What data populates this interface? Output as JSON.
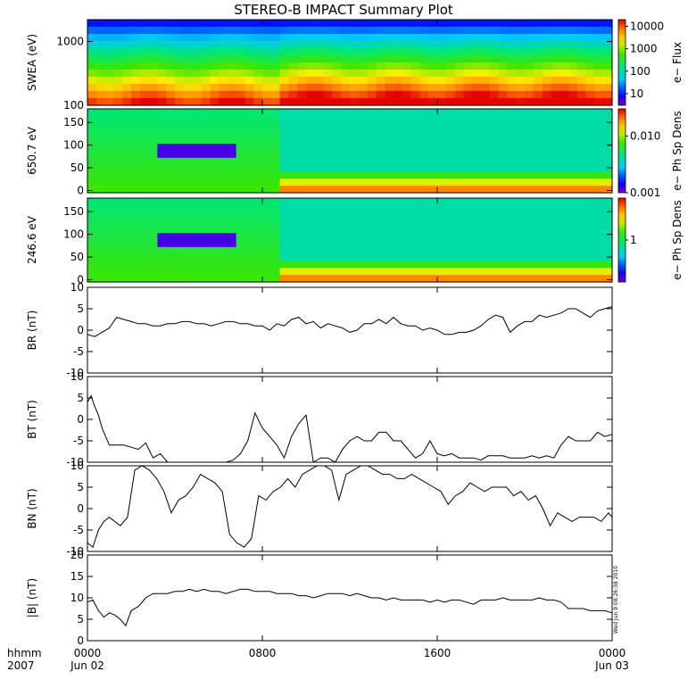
{
  "title": "STEREO-B IMPACT Summary Plot",
  "stamp": "Wed Jun  9 08:26:38 2010",
  "colors": {
    "line": "#000000",
    "background": "#ffffff"
  },
  "chart_data": [
    {
      "type": "heatmap",
      "ylabel": "SWEA (eV)",
      "yscale": "log",
      "ylim": [
        100,
        2200
      ],
      "yticks": [
        "1000",
        "100"
      ],
      "colorbar_label": "e− Flux",
      "colorbar_ticks": [
        "10000",
        "1000",
        "100",
        "10"
      ],
      "colorbar_scale": "log",
      "colorbar_range": [
        3,
        20000
      ],
      "colormap": "rainbow"
    },
    {
      "type": "heatmap",
      "ylabel": "650.7 eV",
      "ylim": [
        -5,
        180
      ],
      "yticks": [
        "150",
        "100",
        "50",
        "0"
      ],
      "colorbar_label": "e− Ph Sp Dens",
      "colorbar_ticks": [
        "0.010",
        "0.001"
      ],
      "colorbar_scale": "log",
      "colorbar_range": [
        0.001,
        0.03
      ],
      "colormap": "rainbow"
    },
    {
      "type": "heatmap",
      "ylabel": "246.6 eV",
      "ylim": [
        -5,
        180
      ],
      "yticks": [
        "150",
        "100",
        "50",
        "0"
      ],
      "colorbar_label": "e− Ph Sp Dens",
      "colorbar_ticks": [
        "1"
      ],
      "colorbar_scale": "log",
      "colorbar_range": [
        0.1,
        10
      ],
      "colormap": "rainbow"
    },
    {
      "type": "line",
      "ylabel": "BR (nT)",
      "ylim": [
        -10,
        10
      ],
      "yticks": [
        "10",
        "5",
        "0",
        "-5",
        "-10"
      ],
      "x": [
        0,
        20,
        40,
        60,
        80,
        100,
        120,
        140,
        160,
        180,
        200,
        220,
        240,
        260,
        280,
        300,
        320,
        340,
        360,
        380,
        400,
        420,
        440,
        460,
        480,
        500,
        520,
        540,
        560,
        580,
        600,
        620,
        640,
        660,
        680,
        700,
        720,
        740,
        760,
        780,
        800,
        820,
        840,
        860,
        880,
        900,
        920,
        940,
        960,
        980,
        1000,
        1020,
        1040,
        1060,
        1080,
        1100,
        1120,
        1140,
        1160,
        1180,
        1200,
        1220,
        1240,
        1260,
        1280,
        1300,
        1320,
        1340,
        1360,
        1380,
        1400,
        1420,
        1440
      ],
      "y": [
        -1,
        -1.5,
        -0.5,
        0.5,
        3,
        2.5,
        2,
        1.5,
        1.5,
        1,
        1,
        1.5,
        1.5,
        2,
        2,
        1.5,
        1.5,
        1,
        1.5,
        2,
        2,
        1.5,
        1.5,
        1,
        1,
        0,
        1.5,
        1,
        2.5,
        3,
        1.5,
        2,
        0.5,
        1.5,
        1,
        0.5,
        -0.5,
        0,
        1.5,
        1.5,
        2.5,
        1.5,
        3,
        1.5,
        1,
        1,
        0,
        0.5,
        0,
        -1,
        -1,
        -0.5,
        -0.5,
        0,
        1,
        2.5,
        3.5,
        3,
        -0.5,
        1,
        2,
        2,
        3.5,
        3,
        3.5,
        4,
        5,
        5,
        4,
        3,
        4.5,
        5,
        5.5
      ]
    },
    {
      "type": "line",
      "ylabel": "BT (nT)",
      "ylim": [
        -10,
        10
      ],
      "yticks": [
        "10",
        "5",
        "0",
        "-5",
        "-10"
      ],
      "x": [
        0,
        10,
        20,
        30,
        40,
        60,
        80,
        100,
        120,
        140,
        160,
        180,
        200,
        220,
        240,
        260,
        280,
        300,
        320,
        340,
        360,
        380,
        400,
        420,
        440,
        460,
        480,
        500,
        520,
        540,
        560,
        580,
        600,
        620,
        640,
        660,
        680,
        700,
        720,
        740,
        760,
        780,
        800,
        820,
        840,
        860,
        880,
        900,
        920,
        940,
        960,
        980,
        1000,
        1020,
        1040,
        1060,
        1080,
        1100,
        1120,
        1140,
        1160,
        1180,
        1200,
        1220,
        1240,
        1260,
        1280,
        1300,
        1320,
        1340,
        1360,
        1380,
        1400,
        1420,
        1440
      ],
      "y": [
        4,
        5.5,
        3,
        1,
        -2,
        -6,
        -6,
        -6,
        -6.5,
        -7,
        -5.5,
        -9,
        -8,
        -10,
        -10,
        -10,
        -10,
        -10,
        -10,
        -10,
        -10,
        -10,
        -9.5,
        -8,
        -5,
        1.5,
        -2,
        -4,
        -6,
        -9,
        -4,
        -1,
        1,
        -10,
        -9,
        -9,
        -10,
        -7,
        -5,
        -4,
        -5,
        -5,
        -3,
        -3,
        -5,
        -5,
        -7,
        -9,
        -8,
        -5,
        -8,
        -8.5,
        -8,
        -9,
        -9,
        -9,
        -9.5,
        -8.5,
        -8.5,
        -8.5,
        -9,
        -9,
        -9,
        -8.5,
        -9,
        -8.5,
        -9,
        -6,
        -4,
        -5,
        -5,
        -5,
        -3,
        -4,
        -3.5
      ]
    },
    {
      "type": "line",
      "ylabel": "BN (nT)",
      "ylim": [
        -10,
        10
      ],
      "yticks": [
        "10",
        "5",
        "0",
        "-5",
        "-10"
      ],
      "x": [
        0,
        15,
        30,
        45,
        60,
        75,
        90,
        110,
        130,
        150,
        170,
        190,
        210,
        230,
        250,
        270,
        290,
        310,
        330,
        350,
        370,
        390,
        410,
        430,
        450,
        470,
        490,
        510,
        530,
        550,
        570,
        590,
        610,
        630,
        650,
        670,
        690,
        710,
        730,
        750,
        770,
        790,
        810,
        830,
        850,
        870,
        890,
        910,
        930,
        950,
        970,
        990,
        1010,
        1030,
        1050,
        1070,
        1090,
        1110,
        1130,
        1150,
        1170,
        1190,
        1210,
        1230,
        1250,
        1270,
        1290,
        1310,
        1330,
        1350,
        1370,
        1390,
        1410,
        1430,
        1440
      ],
      "y": [
        -8,
        -9,
        -5,
        -3,
        -2,
        -3,
        -4,
        -2,
        9,
        10,
        9,
        7,
        4,
        -1,
        2,
        3,
        5,
        8,
        7,
        6,
        4,
        -6,
        -8,
        -9,
        -7,
        3,
        2,
        4,
        5,
        7,
        5,
        8,
        9,
        10,
        10,
        9,
        2,
        8,
        9,
        10,
        10,
        9,
        8,
        8,
        7,
        7,
        8,
        7,
        6,
        5,
        4,
        1,
        3,
        4,
        6,
        5,
        4,
        5,
        5,
        5,
        3,
        4,
        2,
        3,
        0,
        -4,
        -1,
        -2,
        -3,
        -2,
        -2,
        -2,
        -3,
        -1,
        -2
      ]
    },
    {
      "type": "line",
      "ylabel": "|B| (nT)",
      "ylim": [
        0,
        20
      ],
      "yticks": [
        "20",
        "15",
        "10",
        "5",
        "0"
      ],
      "x": [
        0,
        15,
        30,
        45,
        60,
        75,
        90,
        105,
        120,
        140,
        160,
        180,
        200,
        220,
        240,
        260,
        280,
        300,
        320,
        340,
        360,
        380,
        400,
        420,
        440,
        460,
        480,
        500,
        520,
        540,
        560,
        580,
        600,
        620,
        640,
        660,
        680,
        700,
        720,
        740,
        760,
        780,
        800,
        820,
        840,
        860,
        880,
        900,
        920,
        940,
        960,
        980,
        1000,
        1020,
        1040,
        1060,
        1080,
        1100,
        1120,
        1140,
        1160,
        1180,
        1200,
        1220,
        1240,
        1260,
        1280,
        1300,
        1320,
        1340,
        1360,
        1380,
        1400,
        1420,
        1440
      ],
      "y": [
        9,
        9.5,
        7,
        5.5,
        6.5,
        6,
        5,
        3.5,
        7,
        8,
        10,
        11,
        11,
        11,
        11.5,
        11.5,
        12,
        11.5,
        12,
        11.5,
        11.5,
        11,
        11.5,
        12,
        12,
        11.5,
        11.5,
        11.5,
        11,
        11,
        11,
        10.5,
        10.5,
        10,
        10.5,
        11,
        11,
        11,
        10.5,
        11,
        10.5,
        10,
        10,
        9.5,
        10,
        9.5,
        9.5,
        9.5,
        9.5,
        9,
        9.5,
        9,
        9.5,
        9.5,
        9,
        8.5,
        9.5,
        9.5,
        9.5,
        10,
        9.5,
        9.5,
        9.5,
        9.5,
        10,
        9.5,
        9.5,
        9,
        7.5,
        7.5,
        7.5,
        7,
        7,
        7,
        6.5
      ]
    }
  ],
  "x_axis": {
    "range_minutes": [
      0,
      1440
    ],
    "corner_labels": [
      "hhmm",
      "2007"
    ],
    "ticks": [
      {
        "label": "0000",
        "sublabel": "Jun 02",
        "minutes": 0
      },
      {
        "label": "0800",
        "sublabel": "",
        "minutes": 480
      },
      {
        "label": "1600",
        "sublabel": "",
        "minutes": 960
      },
      {
        "label": "0000",
        "sublabel": "Jun 03",
        "minutes": 1440
      }
    ]
  }
}
